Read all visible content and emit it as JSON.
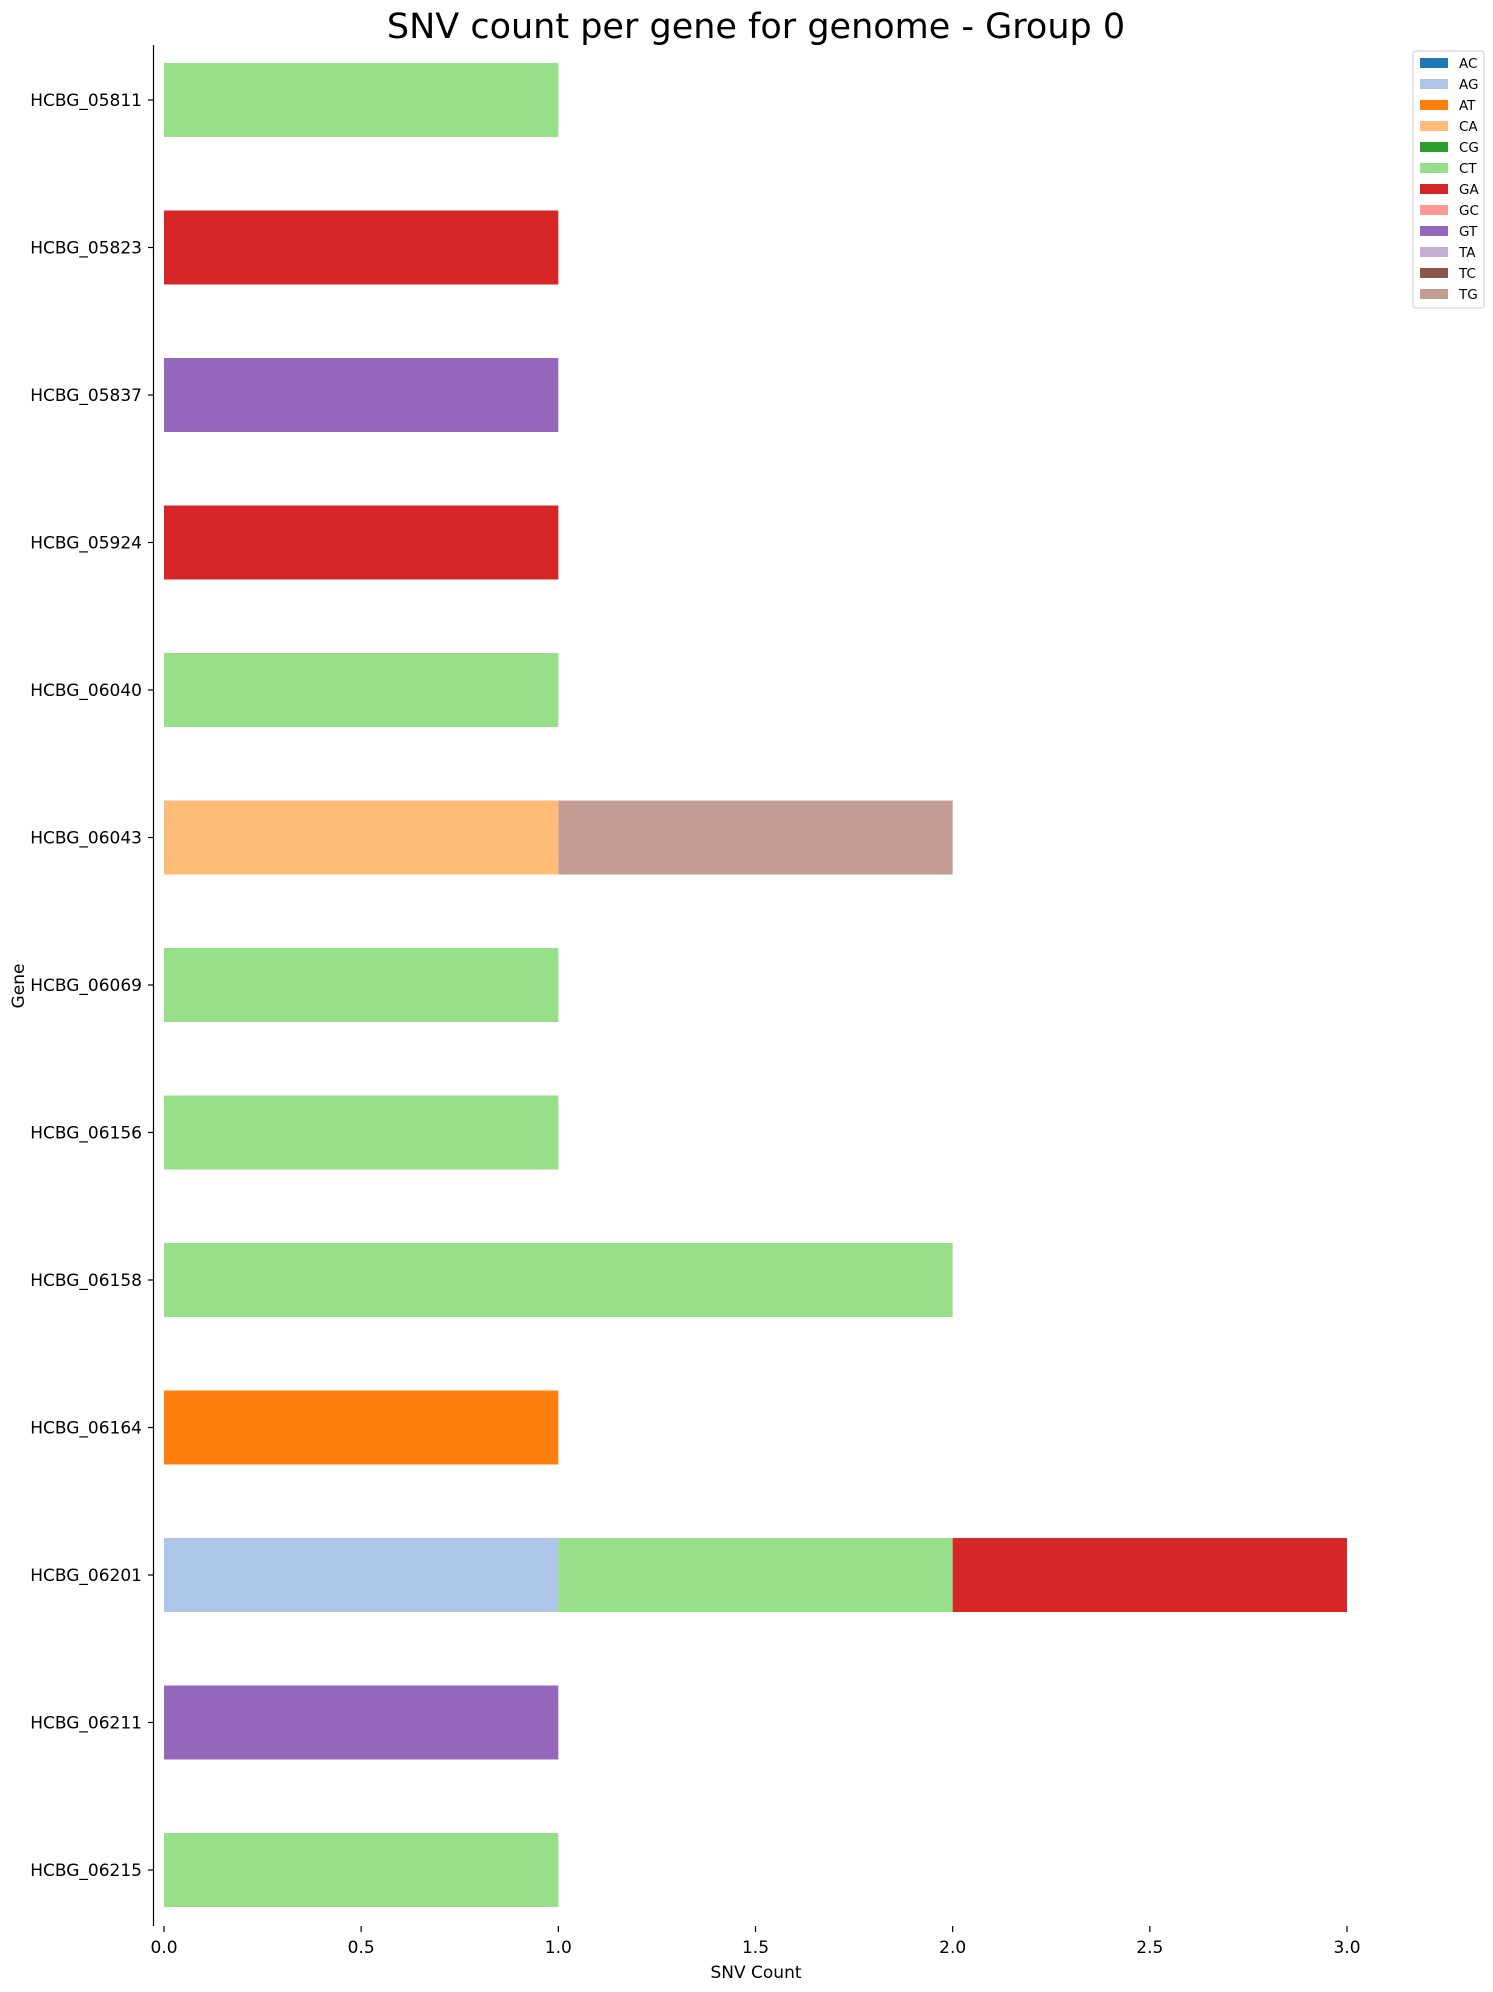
{
  "chart_data": {
    "type": "bar",
    "orientation": "horizontal",
    "stacked": true,
    "title": "SNV count per gene for genome - Group 0",
    "xlabel": "SNV Count",
    "ylabel": "Gene",
    "xlim": [
      0,
      3.0
    ],
    "xticks": [
      "0.0",
      "0.5",
      "1.0",
      "1.5",
      "2.0",
      "2.5",
      "3.0"
    ],
    "grid": false,
    "legend_position": "top-right, outside plot",
    "categories": [
      "HCBG_05811",
      "HCBG_05823",
      "HCBG_05837",
      "HCBG_05924",
      "HCBG_06040",
      "HCBG_06043",
      "HCBG_06069",
      "HCBG_06156",
      "HCBG_06158",
      "HCBG_06164",
      "HCBG_06201",
      "HCBG_06211",
      "HCBG_06215"
    ],
    "series": [
      {
        "name": "AC",
        "color": "#1f77b4",
        "values": [
          0,
          0,
          0,
          0,
          0,
          0,
          0,
          0,
          0,
          0,
          0,
          0,
          0
        ]
      },
      {
        "name": "AG",
        "color": "#aec7e8",
        "values": [
          0,
          0,
          0,
          0,
          0,
          0,
          0,
          0,
          0,
          0,
          1,
          0,
          0
        ]
      },
      {
        "name": "AT",
        "color": "#ff7f0e",
        "values": [
          0,
          0,
          0,
          0,
          0,
          0,
          0,
          0,
          0,
          1,
          0,
          0,
          0
        ]
      },
      {
        "name": "CA",
        "color": "#ffbb78",
        "values": [
          0,
          0,
          0,
          0,
          0,
          1,
          0,
          0,
          0,
          0,
          0,
          0,
          0
        ]
      },
      {
        "name": "CG",
        "color": "#2ca02c",
        "values": [
          0,
          0,
          0,
          0,
          0,
          0,
          0,
          0,
          0,
          0,
          0,
          0,
          0
        ]
      },
      {
        "name": "CT",
        "color": "#98df8a",
        "values": [
          1,
          0,
          0,
          0,
          1,
          0,
          1,
          1,
          2,
          0,
          1,
          0,
          1
        ]
      },
      {
        "name": "GA",
        "color": "#d62728",
        "values": [
          0,
          1,
          0,
          1,
          0,
          0,
          0,
          0,
          0,
          0,
          1,
          0,
          0
        ]
      },
      {
        "name": "GC",
        "color": "#ff9896",
        "values": [
          0,
          0,
          0,
          0,
          0,
          0,
          0,
          0,
          0,
          0,
          0,
          0,
          0
        ]
      },
      {
        "name": "GT",
        "color": "#9467bd",
        "values": [
          0,
          0,
          1,
          0,
          0,
          0,
          0,
          0,
          0,
          0,
          0,
          1,
          0
        ]
      },
      {
        "name": "TA",
        "color": "#c5b0d5",
        "values": [
          0,
          0,
          0,
          0,
          0,
          0,
          0,
          0,
          0,
          0,
          0,
          0,
          0
        ]
      },
      {
        "name": "TC",
        "color": "#8c564b",
        "values": [
          0,
          0,
          0,
          0,
          0,
          0,
          0,
          0,
          0,
          0,
          0,
          0,
          0
        ]
      },
      {
        "name": "TG",
        "color": "#c49c94",
        "values": [
          0,
          0,
          0,
          0,
          0,
          1,
          0,
          0,
          0,
          0,
          0,
          0,
          0
        ]
      }
    ]
  }
}
